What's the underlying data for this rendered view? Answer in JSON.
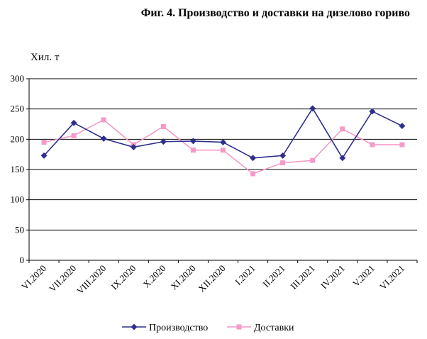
{
  "chart_data": {
    "type": "line",
    "title": "Фиг. 4. Производство и доставки на дизелово гориво",
    "ylabel": "Хил. т",
    "xlabel": "",
    "ylim": [
      0,
      300
    ],
    "yticks": [
      0,
      50,
      100,
      150,
      200,
      250,
      300
    ],
    "grid": true,
    "legend": "bottom",
    "categories": [
      "VI.2020",
      "VII.2020",
      "VIII.2020",
      "IX.2020",
      "X.2020",
      "XI.2020",
      "XII.2020",
      "I.2021",
      "II.2021",
      "III.2021",
      "IV.2021",
      "V.2021",
      "VI.2021"
    ],
    "series": [
      {
        "name": "Производство",
        "color": "#2e2e8c",
        "marker": "diamond",
        "values": [
          173,
          227,
          201,
          187,
          196,
          197,
          195,
          169,
          173,
          251,
          169,
          246,
          222
        ]
      },
      {
        "name": "Доставки",
        "color": "#f49ac8",
        "marker": "square",
        "values": [
          195,
          206,
          232,
          191,
          221,
          182,
          182,
          143,
          161,
          165,
          217,
          191,
          191
        ]
      }
    ]
  }
}
